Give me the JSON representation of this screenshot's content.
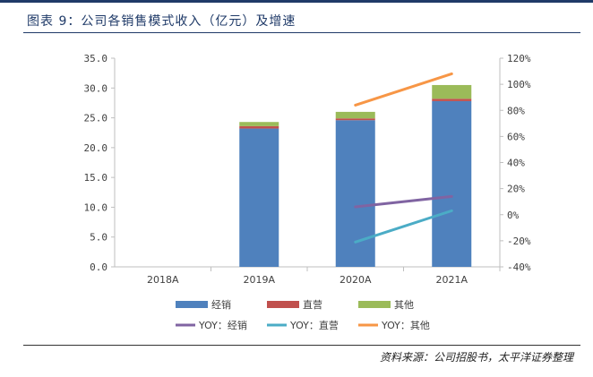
{
  "figure": {
    "title": "图表 9：公司各销售模式收入（亿元）及增速",
    "source": "资料来源：公司招股书，太平洋证券整理"
  },
  "colors": {
    "jingxiao": "#4f81bd",
    "zhiying": "#c0504d",
    "qita": "#9bbb59",
    "yoy_jingxiao": "#8064a2",
    "yoy_zhiying": "#4bacc6",
    "yoy_qita": "#f79646",
    "accent": "#1f3a68"
  },
  "chart_data": {
    "type": "bar",
    "stacked": true,
    "categories": [
      "2018A",
      "2019A",
      "2020A",
      "2021A"
    ],
    "series": [
      {
        "name": "经销",
        "axis": "left",
        "kind": "bar",
        "values": [
          0,
          23.2,
          24.6,
          27.8
        ]
      },
      {
        "name": "直营",
        "axis": "left",
        "kind": "bar",
        "values": [
          0,
          0.4,
          0.3,
          0.4
        ]
      },
      {
        "name": "其他",
        "axis": "left",
        "kind": "bar",
        "values": [
          0,
          0.7,
          1.1,
          2.3
        ]
      },
      {
        "name": "YOY：经销",
        "axis": "right",
        "kind": "line",
        "values": [
          null,
          null,
          6,
          14
        ]
      },
      {
        "name": "YOY：直营",
        "axis": "right",
        "kind": "line",
        "values": [
          null,
          null,
          -21,
          3
        ]
      },
      {
        "name": "YOY：其他",
        "axis": "right",
        "kind": "line",
        "values": [
          null,
          null,
          84,
          108
        ]
      }
    ],
    "y_left": {
      "min": 0,
      "max": 35,
      "step": 5,
      "tick_labels": [
        "0.0",
        "5.0",
        "10.0",
        "15.0",
        "20.0",
        "25.0",
        "30.0",
        "35.0"
      ]
    },
    "y_right": {
      "min": -40,
      "max": 120,
      "step": 20,
      "tick_labels": [
        "-40%",
        "-20%",
        "0%",
        "20%",
        "40%",
        "60%",
        "80%",
        "100%",
        "120%"
      ]
    },
    "grid": false,
    "legend": "bottom"
  }
}
